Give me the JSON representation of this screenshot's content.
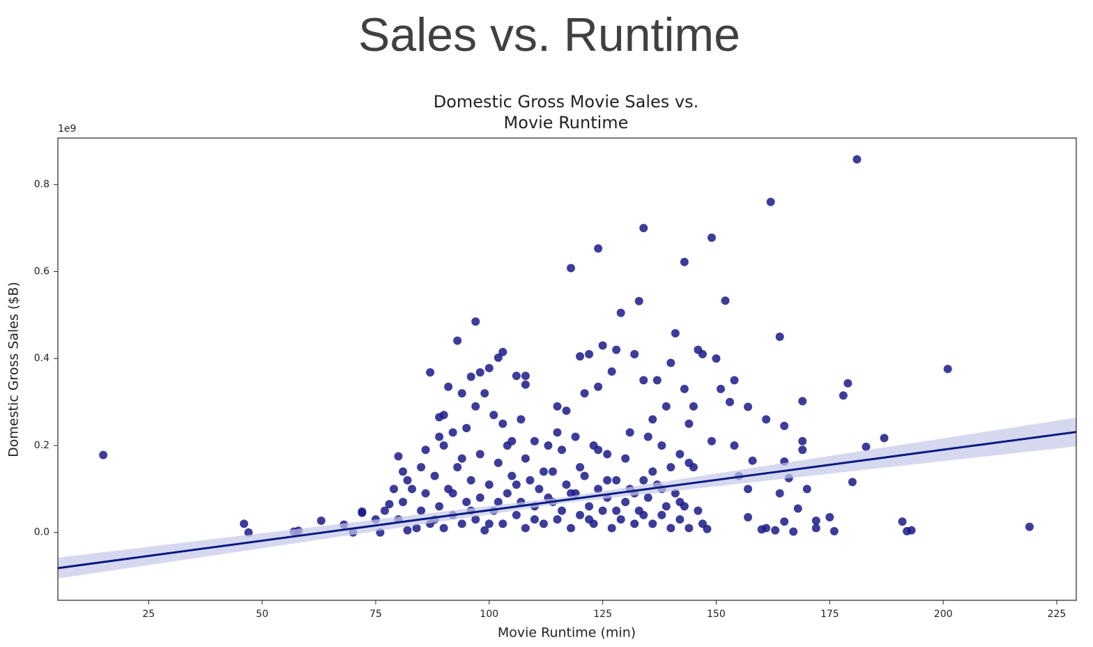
{
  "slide_title": "Sales vs. Runtime",
  "chart_data": {
    "type": "scatter",
    "title": [
      "Domestic Gross Movie Sales vs.",
      "Movie Runtime"
    ],
    "xlabel": "Movie Runtime (min)",
    "ylabel": "Domestic Gross Sales ($B)",
    "y_offset_label": "1e9",
    "color": "#1a1a8a",
    "xlim": [
      5,
      229.3
    ],
    "ylim": [
      -0.156,
      0.907
    ],
    "xticks": [
      25,
      50,
      75,
      100,
      125,
      150,
      175,
      200,
      225
    ],
    "yticks": [
      {
        "value": 0,
        "label": "0.0"
      },
      0.2,
      0.4,
      0.6,
      0.8
    ],
    "regression": {
      "color": "#0a1a80",
      "band_color": "#c5c8e8",
      "x": [
        5,
        117,
        229.3
      ],
      "y": [
        -0.082,
        0.075,
        0.231
      ],
      "lower": [
        -0.106,
        0.068,
        0.198
      ],
      "upper": [
        -0.058,
        0.082,
        0.264
      ]
    },
    "x": [
      15,
      46,
      47,
      57,
      58,
      63,
      68,
      70,
      72,
      72,
      75,
      76,
      77,
      78,
      80,
      81,
      82,
      87,
      93,
      97,
      103,
      102,
      96,
      98,
      100,
      118,
      124,
      134,
      143,
      149,
      133,
      129,
      152,
      162,
      181,
      164,
      141,
      201,
      179,
      178,
      187,
      183,
      180,
      219,
      191,
      192,
      193,
      175,
      176,
      172,
      172,
      170,
      169,
      169,
      169,
      168,
      167,
      165,
      165,
      165,
      166,
      164,
      163,
      161,
      161,
      160,
      157,
      158,
      157,
      157,
      154,
      154,
      155,
      153,
      151,
      150,
      149,
      148,
      147,
      146,
      145,
      144,
      143,
      140,
      139,
      137,
      136,
      134,
      132,
      128,
      127,
      125,
      124,
      122,
      120,
      121,
      117,
      115,
      113,
      108,
      108,
      106,
      105,
      101,
      99,
      97,
      94,
      91,
      90,
      89,
      84,
      85,
      86,
      87,
      88,
      89,
      90,
      91,
      92,
      93,
      94,
      95,
      96,
      97,
      98,
      99,
      100,
      101,
      102,
      103,
      104,
      105,
      106,
      107,
      108,
      109,
      110,
      111,
      112,
      113,
      114,
      115,
      116,
      117,
      118,
      119,
      120,
      121,
      122,
      123,
      124,
      125,
      126,
      127,
      128,
      129,
      130,
      131,
      132,
      133,
      134,
      135,
      136,
      137,
      138,
      139,
      140,
      141,
      142,
      143,
      144,
      145,
      146,
      147,
      83,
      85,
      88,
      90,
      92,
      94,
      96,
      98,
      100,
      102,
      104,
      106,
      108,
      110,
      112,
      114,
      116,
      118,
      120,
      122,
      124,
      126,
      128,
      130,
      132,
      134,
      136,
      138,
      140,
      142,
      95,
      103,
      107,
      110,
      115,
      119,
      123,
      126,
      131,
      135,
      138,
      142,
      144,
      86,
      89,
      92,
      80,
      81,
      82,
      79
    ],
    "values": [
      0.178,
      0.02,
      0.0,
      0.002,
      0.004,
      0.027,
      0.018,
      0.0,
      0.048,
      0.045,
      0.03,
      0.0,
      0.05,
      0.065,
      0.175,
      0.14,
      0.12,
      0.368,
      0.441,
      0.485,
      0.415,
      0.402,
      0.358,
      0.368,
      0.378,
      0.608,
      0.653,
      0.7,
      0.622,
      0.678,
      0.532,
      0.505,
      0.533,
      0.76,
      0.858,
      0.45,
      0.458,
      0.376,
      0.343,
      0.315,
      0.217,
      0.197,
      0.116,
      0.013,
      0.025,
      0.003,
      0.005,
      0.035,
      0.003,
      0.027,
      0.01,
      0.1,
      0.302,
      0.21,
      0.19,
      0.055,
      0.002,
      0.245,
      0.163,
      0.025,
      0.125,
      0.09,
      0.005,
      0.26,
      0.01,
      0.007,
      0.289,
      0.165,
      0.1,
      0.035,
      0.35,
      0.2,
      0.13,
      0.3,
      0.33,
      0.4,
      0.21,
      0.008,
      0.41,
      0.42,
      0.29,
      0.25,
      0.33,
      0.39,
      0.29,
      0.35,
      0.26,
      0.35,
      0.41,
      0.42,
      0.37,
      0.43,
      0.335,
      0.41,
      0.405,
      0.32,
      0.28,
      0.29,
      0.2,
      0.36,
      0.34,
      0.36,
      0.21,
      0.27,
      0.32,
      0.29,
      0.32,
      0.335,
      0.27,
      0.265,
      0.01,
      0.05,
      0.09,
      0.02,
      0.13,
      0.06,
      0.01,
      0.1,
      0.04,
      0.15,
      0.02,
      0.07,
      0.12,
      0.03,
      0.08,
      0.005,
      0.11,
      0.05,
      0.16,
      0.02,
      0.09,
      0.13,
      0.04,
      0.07,
      0.01,
      0.12,
      0.06,
      0.1,
      0.02,
      0.08,
      0.14,
      0.03,
      0.05,
      0.11,
      0.01,
      0.09,
      0.04,
      0.13,
      0.06,
      0.02,
      0.1,
      0.05,
      0.08,
      0.01,
      0.12,
      0.03,
      0.07,
      0.1,
      0.02,
      0.05,
      0.12,
      0.08,
      0.02,
      0.11,
      0.04,
      0.06,
      0.01,
      0.09,
      0.03,
      0.06,
      0.01,
      0.15,
      0.05,
      0.02,
      0.1,
      0.15,
      0.03,
      0.2,
      0.09,
      0.17,
      0.05,
      0.18,
      0.02,
      0.07,
      0.2,
      0.11,
      0.17,
      0.03,
      0.14,
      0.07,
      0.19,
      0.09,
      0.15,
      0.03,
      0.19,
      0.12,
      0.05,
      0.17,
      0.09,
      0.04,
      0.14,
      0.1,
      0.15,
      0.07,
      0.24,
      0.25,
      0.26,
      0.21,
      0.23,
      0.22,
      0.2,
      0.18,
      0.23,
      0.22,
      0.2,
      0.18,
      0.16,
      0.19,
      0.22,
      0.23,
      0.03,
      0.07,
      0.005,
      0.1
    ]
  }
}
